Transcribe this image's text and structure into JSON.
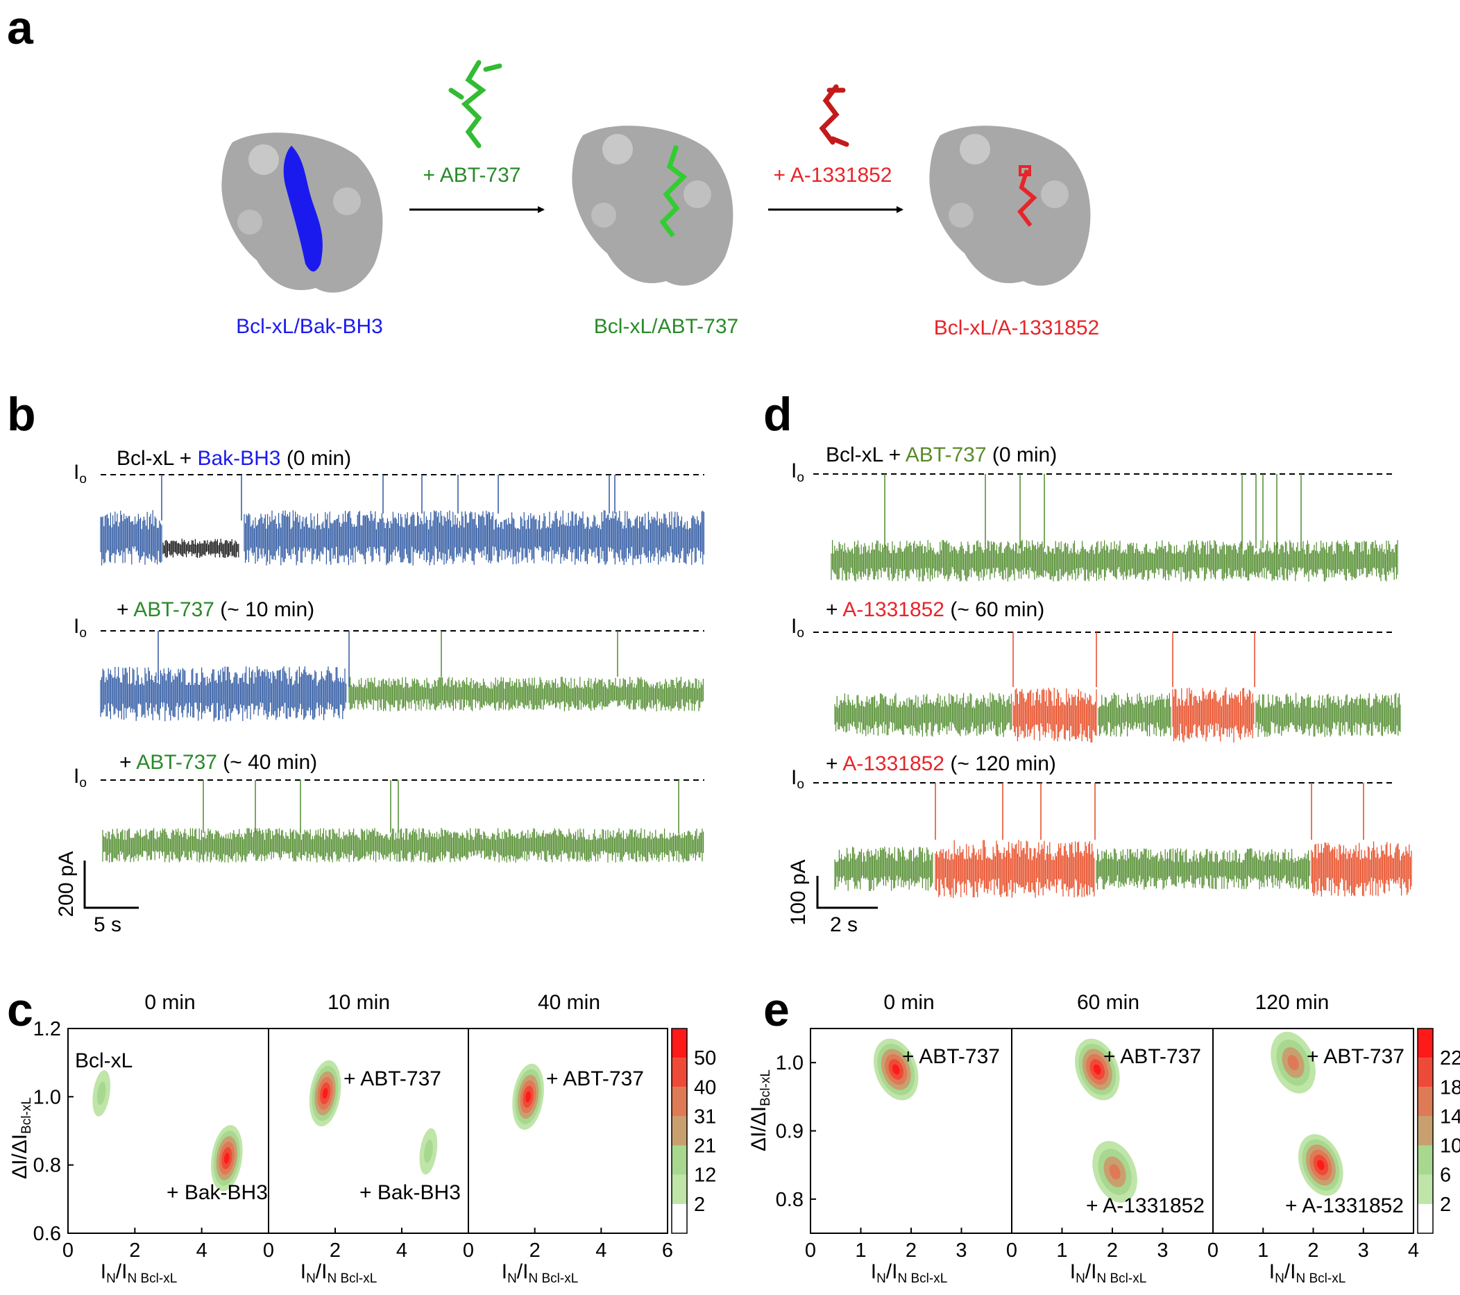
{
  "panels": {
    "a": "a",
    "b": "b",
    "c": "c",
    "d": "d",
    "e": "e"
  },
  "colors": {
    "bak": "#1a1aee",
    "abt": "#2a8a2a",
    "a133": "#e8242a",
    "trace_blue": "#2a55a0",
    "trace_green": "#4e8a2a",
    "trace_orange": "#e6461e",
    "protein": "#a8a8a8"
  },
  "panel_a": {
    "add_abt": "+ ABT-737",
    "add_a133": "+ A-1331852",
    "complexes": [
      {
        "label": "Bcl-xL/Bak-BH3",
        "ligand": "bak"
      },
      {
        "label": "Bcl-xL/ABT-737",
        "ligand": "abt"
      },
      {
        "label": "Bcl-xL/A-1331852",
        "ligand": "a133"
      }
    ]
  },
  "panel_b": {
    "io": "I",
    "io_sub": "o",
    "traces": [
      {
        "prefix": "Bcl-xL + ",
        "drug": "Bak-BH3",
        "drug_color": "bak",
        "suffix": " (0 min)"
      },
      {
        "prefix": "+ ",
        "drug": "ABT-737",
        "drug_color": "abt",
        "suffix": " (~ 10 min)"
      },
      {
        "prefix": "+ ",
        "drug": "ABT-737",
        "drug_color": "abt",
        "suffix": " (~ 40 min)"
      }
    ],
    "scale_current": "200 pA",
    "scale_time": "5 s"
  },
  "panel_d": {
    "io": "I",
    "io_sub": "o",
    "traces": [
      {
        "prefix": "Bcl-xL + ",
        "drug": "ABT-737",
        "drug_color": "abt",
        "suffix": " (0 min)"
      },
      {
        "prefix": "+ ",
        "drug": "A-1331852",
        "drug_color": "a133",
        "suffix": " (~ 60 min)"
      },
      {
        "prefix": "+ ",
        "drug": "A-1331852",
        "drug_color": "a133",
        "suffix": " (~ 120 min)"
      }
    ],
    "scale_current": "100 pA",
    "scale_time": "2 s"
  },
  "chart_data": [
    {
      "type": "heatmap",
      "panel": "c",
      "subplot_titles": [
        "0 min",
        "10 min",
        "40 min"
      ],
      "xlabel_main": "I",
      "xlabel_sub1": "N",
      "xlabel_mid": "/I",
      "xlabel_sub2": "N  Bcl-xL",
      "ylabel_main": "ΔI/ΔI",
      "ylabel_sub": "Bcl-xL",
      "xlim": [
        0,
        6
      ],
      "ylim": [
        0.6,
        1.2
      ],
      "xticks": [
        "0",
        "2",
        "4",
        "0",
        "2",
        "4",
        "0",
        "2",
        "4",
        "6"
      ],
      "yticks": [
        "0.6",
        "0.8",
        "1.0",
        "1.2"
      ],
      "colorbar_ticks": [
        "2",
        "12",
        "21",
        "31",
        "40",
        "50"
      ],
      "clusters": [
        {
          "panel": 0,
          "label": "Bcl-xL",
          "x": 1.0,
          "y": 1.01,
          "intensity": "low"
        },
        {
          "panel": 0,
          "label": "+ Bak-BH3",
          "x": 4.75,
          "y": 0.82,
          "intensity": "high"
        },
        {
          "panel": 1,
          "label": "+ ABT-737",
          "x": 1.7,
          "y": 1.01,
          "intensity": "high"
        },
        {
          "panel": 1,
          "label": "+ Bak-BH3",
          "x": 4.8,
          "y": 0.84,
          "intensity": "low"
        },
        {
          "panel": 2,
          "label": "+ ABT-737",
          "x": 1.8,
          "y": 1.0,
          "intensity": "high"
        }
      ]
    },
    {
      "type": "heatmap",
      "panel": "e",
      "subplot_titles": [
        "0 min",
        "60 min",
        "120 min"
      ],
      "xlabel_main": "I",
      "xlabel_sub1": "N",
      "xlabel_mid": "/I",
      "xlabel_sub2": "N  Bcl-xL",
      "ylabel_main": "ΔI/ΔI",
      "ylabel_sub": "Bcl-xL",
      "xlim": [
        0,
        4
      ],
      "ylim": [
        0.75,
        1.05
      ],
      "xticks": [
        "0",
        "1",
        "2",
        "3",
        "0",
        "1",
        "2",
        "3",
        "0",
        "1",
        "2",
        "3",
        "4"
      ],
      "yticks": [
        "0.8",
        "0.9",
        "1.0"
      ],
      "colorbar_ticks": [
        "2",
        "6",
        "10",
        "14",
        "18",
        "22"
      ],
      "clusters": [
        {
          "panel": 0,
          "label": "+ ABT-737",
          "x": 1.7,
          "y": 0.99,
          "intensity": "high"
        },
        {
          "panel": 1,
          "label": "+ ABT-737",
          "x": 1.7,
          "y": 0.99,
          "intensity": "high"
        },
        {
          "panel": 1,
          "label": "+ A-1331852",
          "x": 2.05,
          "y": 0.84,
          "intensity": "medium"
        },
        {
          "panel": 2,
          "label": "+ ABT-737",
          "x": 1.6,
          "y": 1.0,
          "intensity": "medium"
        },
        {
          "panel": 2,
          "label": "+ A-1331852",
          "x": 2.15,
          "y": 0.85,
          "intensity": "high"
        }
      ]
    }
  ]
}
